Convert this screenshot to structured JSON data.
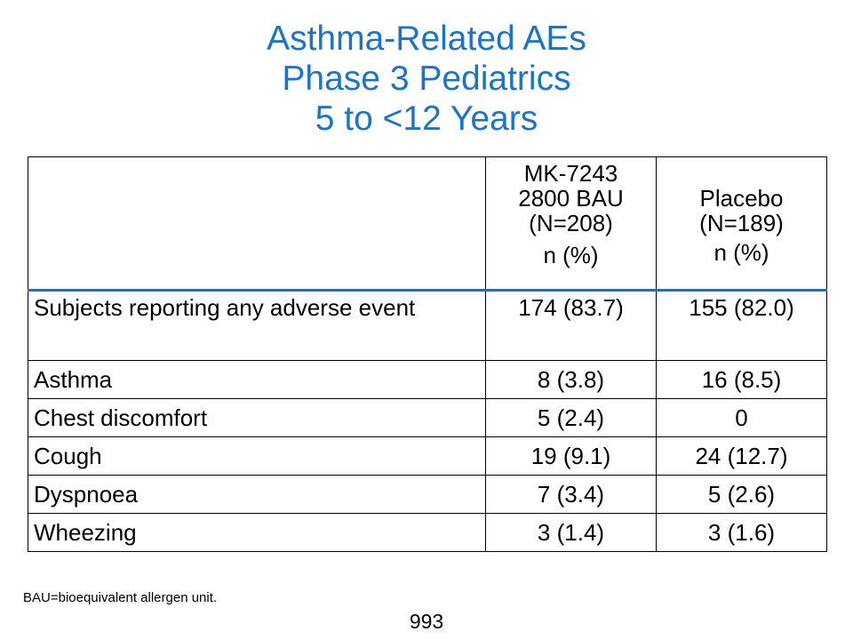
{
  "slide": {
    "title_lines": [
      "Asthma-Related AEs",
      "Phase 3 Pediatrics",
      "5 to <12 Years"
    ],
    "title_color": "#1874CD",
    "header_rule_color": "#1E6FBF"
  },
  "table": {
    "columns": [
      {
        "lines": [
          "MK-7243",
          "2800 BAU",
          "(N=208)"
        ],
        "unit": "n (%)"
      },
      {
        "lines": [
          "Placebo",
          "(N=189)"
        ],
        "unit": "n (%)"
      }
    ],
    "rows": [
      {
        "term": "Subjects reporting any adverse event",
        "mk7243": "174 (83.7)",
        "placebo": "155 (82.0)"
      },
      {
        "term": "Asthma",
        "mk7243": "8 (3.8)",
        "placebo": "16 (8.5)"
      },
      {
        "term": "Chest discomfort",
        "mk7243": "5 (2.4)",
        "placebo": "0"
      },
      {
        "term": "Cough",
        "mk7243": "19 (9.1)",
        "placebo": "24 (12.7)"
      },
      {
        "term": "Dyspnoea",
        "mk7243": "7 (3.4)",
        "placebo": "5 (2.6)"
      },
      {
        "term": "Wheezing",
        "mk7243": "3 (1.4)",
        "placebo": "3 (1.6)"
      }
    ]
  },
  "footnote": "BAU=bioequivalent allergen unit.",
  "page_number": "993"
}
